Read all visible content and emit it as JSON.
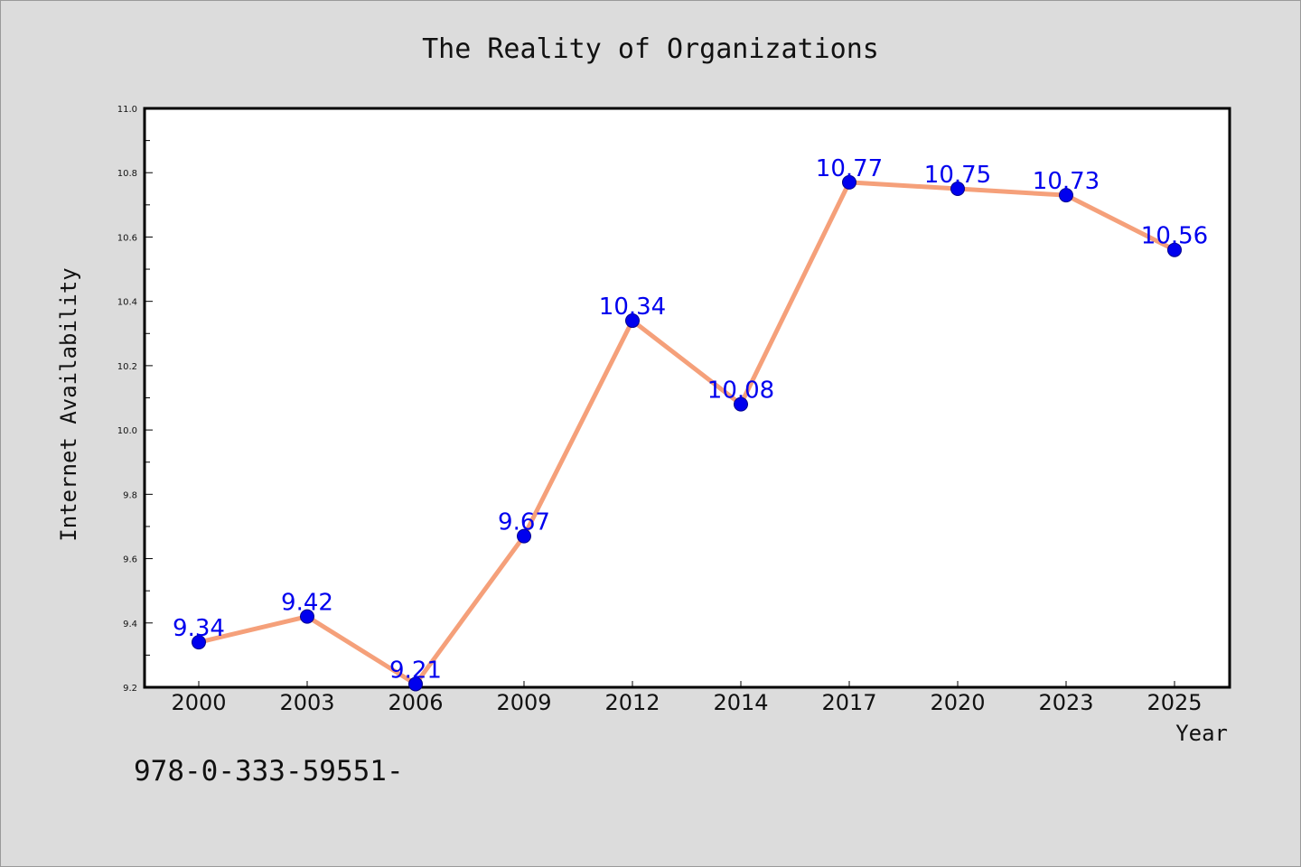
{
  "chart_data": {
    "type": "line",
    "title": "The Reality of Organizations",
    "xlabel": "Year",
    "ylabel": "Internet Availability",
    "categories": [
      "2000",
      "2003",
      "2006",
      "2009",
      "2012",
      "2014",
      "2017",
      "2020",
      "2023",
      "2025"
    ],
    "series": [
      {
        "values": [
          9.34,
          9.42,
          9.21,
          9.67,
          10.34,
          10.08,
          10.77,
          10.75,
          10.73,
          10.56
        ],
        "data_labels": [
          "9.34",
          "9.42",
          "9.21",
          "9.67",
          "10.34",
          "10.08",
          "10.77",
          "10.75",
          "10.73",
          "10.56"
        ],
        "line_color": "#f5a07a",
        "marker_color": "#0000ee"
      }
    ],
    "ylim": [
      9.2,
      11.0
    ],
    "yticks": [
      "9.2",
      "9.4",
      "9.6",
      "9.8",
      "10.0",
      "10.2",
      "10.4",
      "10.6",
      "10.8",
      "11.0"
    ],
    "grid": false,
    "legend": "none"
  },
  "footer_text": "978-0-333-59551-"
}
